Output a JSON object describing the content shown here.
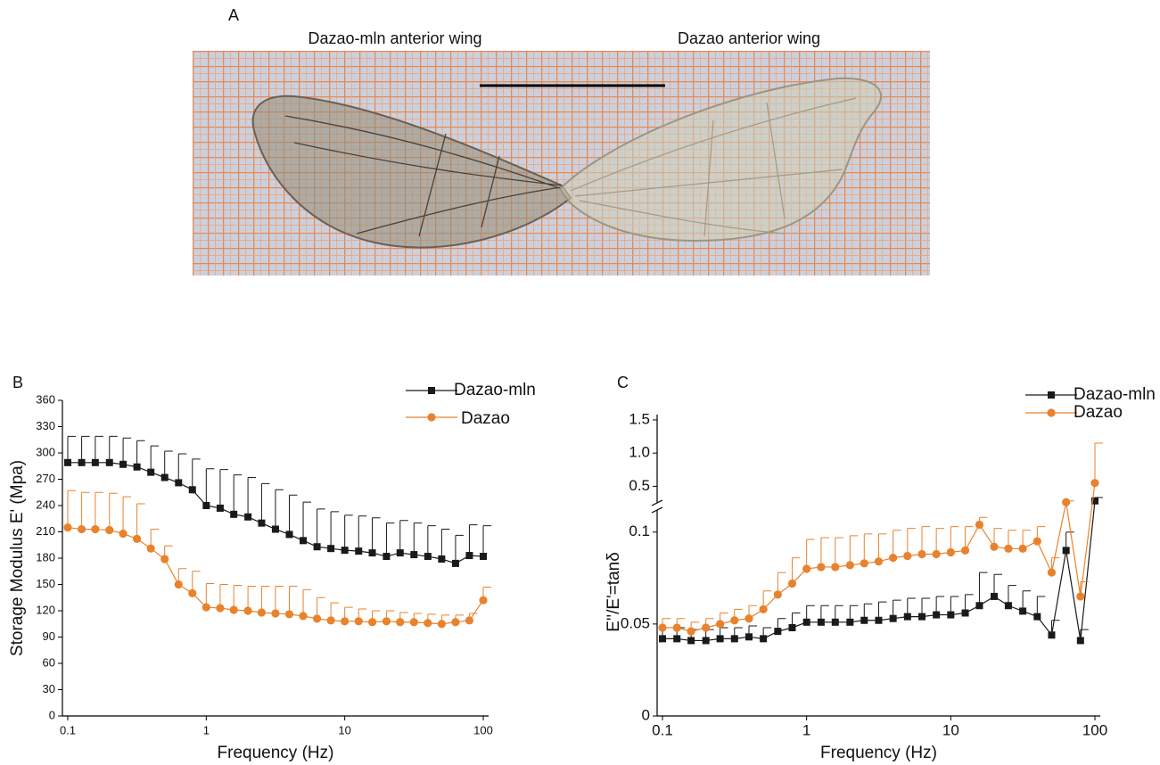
{
  "panel_a": {
    "label": "A",
    "caption_left": "Dazao-mln anterior wing",
    "caption_right": "Dazao anterior wing"
  },
  "chart_data": [
    {
      "type": "line",
      "panel": "B",
      "xlabel": "Frequency (Hz)",
      "ylabel": "Storage Modulus E' (Mpa)",
      "xscale": "log",
      "xlim": [
        0.1,
        100
      ],
      "xticks": [
        0.1,
        1,
        10,
        100
      ],
      "ylim": [
        0,
        360
      ],
      "yticks": [
        0,
        30,
        60,
        90,
        120,
        150,
        180,
        210,
        240,
        270,
        300,
        330,
        360
      ],
      "legend": "upper right",
      "x": [
        0.1,
        0.126,
        0.158,
        0.2,
        0.251,
        0.316,
        0.398,
        0.501,
        0.631,
        0.794,
        1,
        1.26,
        1.58,
        2,
        2.51,
        3.16,
        3.98,
        5.01,
        6.31,
        7.94,
        10,
        12.6,
        15.8,
        20,
        25.1,
        31.6,
        39.8,
        50.1,
        63.1,
        79.4,
        100
      ],
      "series": [
        {
          "name": "Dazao-mln",
          "color": "#1a1a1a",
          "marker": "square",
          "values": [
            289,
            289,
            289,
            289,
            287,
            284,
            278,
            272,
            266,
            258,
            240,
            237,
            230,
            227,
            220,
            213,
            207,
            200,
            193,
            191,
            189,
            188,
            186,
            182,
            186,
            184,
            182,
            179,
            174,
            183,
            182
          ],
          "errors": [
            30,
            30,
            30,
            30,
            30,
            30,
            30,
            30,
            33,
            35,
            42,
            44,
            45,
            45,
            45,
            45,
            45,
            44,
            43,
            42,
            40,
            40,
            40,
            38,
            37,
            36,
            35,
            34,
            32,
            35,
            35
          ]
        },
        {
          "name": "Dazao",
          "color": "#e8822d",
          "marker": "circle",
          "values": [
            215,
            213,
            213,
            212,
            208,
            202,
            191,
            179,
            150,
            140,
            124,
            123,
            121,
            120,
            118,
            117,
            116,
            114,
            111,
            109,
            108,
            108,
            107,
            108,
            107,
            107,
            106,
            105,
            107,
            109,
            132
          ],
          "errors": [
            42,
            42,
            42,
            42,
            42,
            40,
            22,
            15,
            18,
            25,
            27,
            27,
            28,
            28,
            30,
            31,
            32,
            30,
            24,
            20,
            16,
            14,
            13,
            12,
            11,
            10,
            10,
            10,
            8,
            8,
            15
          ]
        }
      ]
    },
    {
      "type": "line",
      "panel": "C",
      "xlabel": "Frequency (Hz)",
      "ylabel": "E''/E'=tanδ",
      "xscale": "log",
      "xlim": [
        0.1,
        100
      ],
      "xticks": [
        0.1,
        1,
        10,
        100
      ],
      "ylim": [
        0,
        1.58
      ],
      "ybreak": [
        0.112,
        0.25
      ],
      "yticks": [
        0,
        0.05,
        0.1,
        0.5,
        {
          "value": 1,
          "label": "1.0"
        },
        1.5
      ],
      "legend": "upper right",
      "x": [
        0.1,
        0.126,
        0.158,
        0.2,
        0.251,
        0.316,
        0.398,
        0.501,
        0.631,
        0.794,
        1,
        1.26,
        1.58,
        2,
        2.51,
        3.16,
        3.98,
        5.01,
        6.31,
        7.94,
        10,
        12.6,
        15.8,
        20,
        25.1,
        31.6,
        39.8,
        50.1,
        63.1,
        79.4,
        100
      ],
      "series": [
        {
          "name": "Dazao-mln",
          "color": "#1a1a1a",
          "marker": "square",
          "values": [
            0.042,
            0.042,
            0.041,
            0.041,
            0.042,
            0.042,
            0.043,
            0.042,
            0.046,
            0.048,
            0.051,
            0.051,
            0.051,
            0.051,
            0.052,
            0.052,
            0.053,
            0.054,
            0.054,
            0.055,
            0.055,
            0.056,
            0.06,
            0.065,
            0.06,
            0.057,
            0.054,
            0.044,
            0.09,
            0.041,
            0.28
          ],
          "errors": [
            0.006,
            0.006,
            0.006,
            0.006,
            0.006,
            0.006,
            0.006,
            0.006,
            0.007,
            0.008,
            0.009,
            0.009,
            0.009,
            0.009,
            0.009,
            0.01,
            0.01,
            0.01,
            0.01,
            0.01,
            0.01,
            0.01,
            0.018,
            0.012,
            0.011,
            0.011,
            0.011,
            0.008,
            0.01,
            0.006,
            0.05
          ]
        },
        {
          "name": "Dazao",
          "color": "#e8822d",
          "marker": "circle",
          "values": [
            0.048,
            0.048,
            0.046,
            0.048,
            0.05,
            0.052,
            0.053,
            0.058,
            0.066,
            0.072,
            0.08,
            0.081,
            0.081,
            0.082,
            0.083,
            0.084,
            0.086,
            0.087,
            0.088,
            0.088,
            0.089,
            0.09,
            0.104,
            0.092,
            0.091,
            0.091,
            0.095,
            0.078,
            0.26,
            0.065,
            0.55
          ],
          "errors": [
            0.005,
            0.005,
            0.005,
            0.005,
            0.006,
            0.006,
            0.007,
            0.01,
            0.012,
            0.014,
            0.016,
            0.016,
            0.016,
            0.016,
            0.016,
            0.015,
            0.015,
            0.015,
            0.015,
            0.014,
            0.014,
            0.013,
            0.004,
            0.01,
            0.01,
            0.01,
            0.008,
            0.008,
            0.02,
            0.008,
            0.6
          ]
        }
      ]
    }
  ]
}
